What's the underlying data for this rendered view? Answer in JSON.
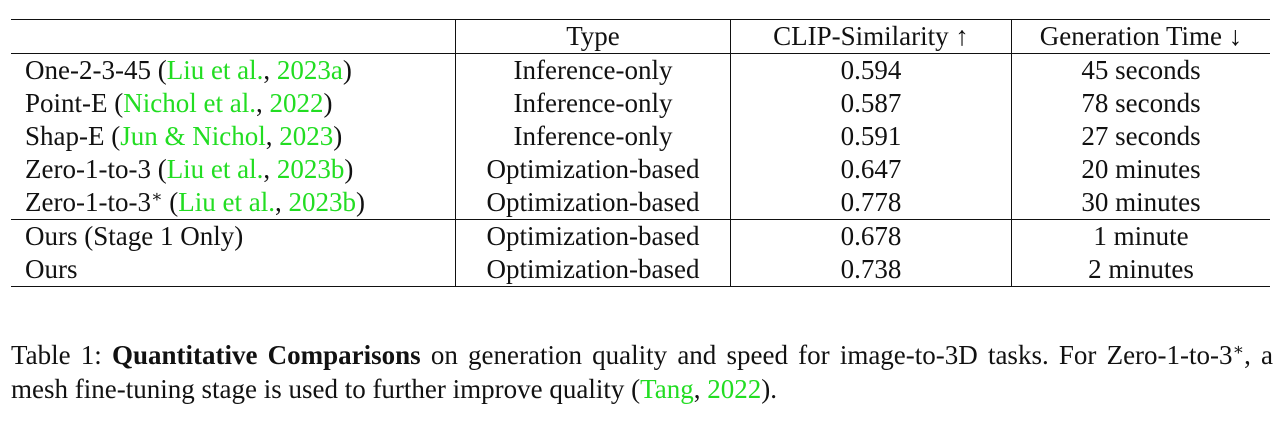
{
  "table": {
    "headers": {
      "method": "",
      "type": "Type",
      "clip": "CLIP-Similarity ↑",
      "time": "Generation Time ↓"
    },
    "rows": [
      {
        "method": "One-2-3-45 (",
        "cite_author": "Liu et al.",
        "cite_sep": ", ",
        "cite_year": "2023a",
        "close": ")",
        "sup": "",
        "type": "Inference-only",
        "clip": "0.594",
        "time": "45 seconds"
      },
      {
        "method": "Point-E (",
        "cite_author": "Nichol et al.",
        "cite_sep": ", ",
        "cite_year": "2022",
        "close": ")",
        "sup": "",
        "type": "Inference-only",
        "clip": "0.587",
        "time": "78 seconds"
      },
      {
        "method": "Shap-E (",
        "cite_author": "Jun & Nichol",
        "cite_sep": ", ",
        "cite_year": "2023",
        "close": ")",
        "sup": "",
        "type": "Inference-only",
        "clip": "0.591",
        "time": "27 seconds"
      },
      {
        "method": "Zero-1-to-3 (",
        "cite_author": "Liu et al.",
        "cite_sep": ", ",
        "cite_year": "2023b",
        "close": ")",
        "sup": "",
        "type": "Optimization-based",
        "clip": "0.647",
        "time": "20 minutes"
      },
      {
        "method": "Zero-1-to-3",
        "sup": "∗",
        "method_after": " (",
        "cite_author": "Liu et al.",
        "cite_sep": ", ",
        "cite_year": "2023b",
        "close": ")",
        "type": "Optimization-based",
        "clip": "0.778",
        "time": "30 minutes"
      },
      {
        "method": "Ours (Stage 1 Only)",
        "type": "Optimization-based",
        "clip": "0.678",
        "time": "1 minute"
      },
      {
        "method": "Ours",
        "type": "Optimization-based",
        "clip": "0.738",
        "time": "2 minutes"
      }
    ]
  },
  "caption": {
    "label": "Table 1: ",
    "bold": "Quantitative Comparisons",
    "text1": " on generation quality and speed for image-to-3D tasks. For Zero-1-to-3",
    "sup": "∗",
    "text2": ", a mesh fine-tuning stage is used to further improve quality (",
    "cite_author": "Tang",
    "cite_sep": ", ",
    "cite_year": "2022",
    "text3": ")."
  }
}
